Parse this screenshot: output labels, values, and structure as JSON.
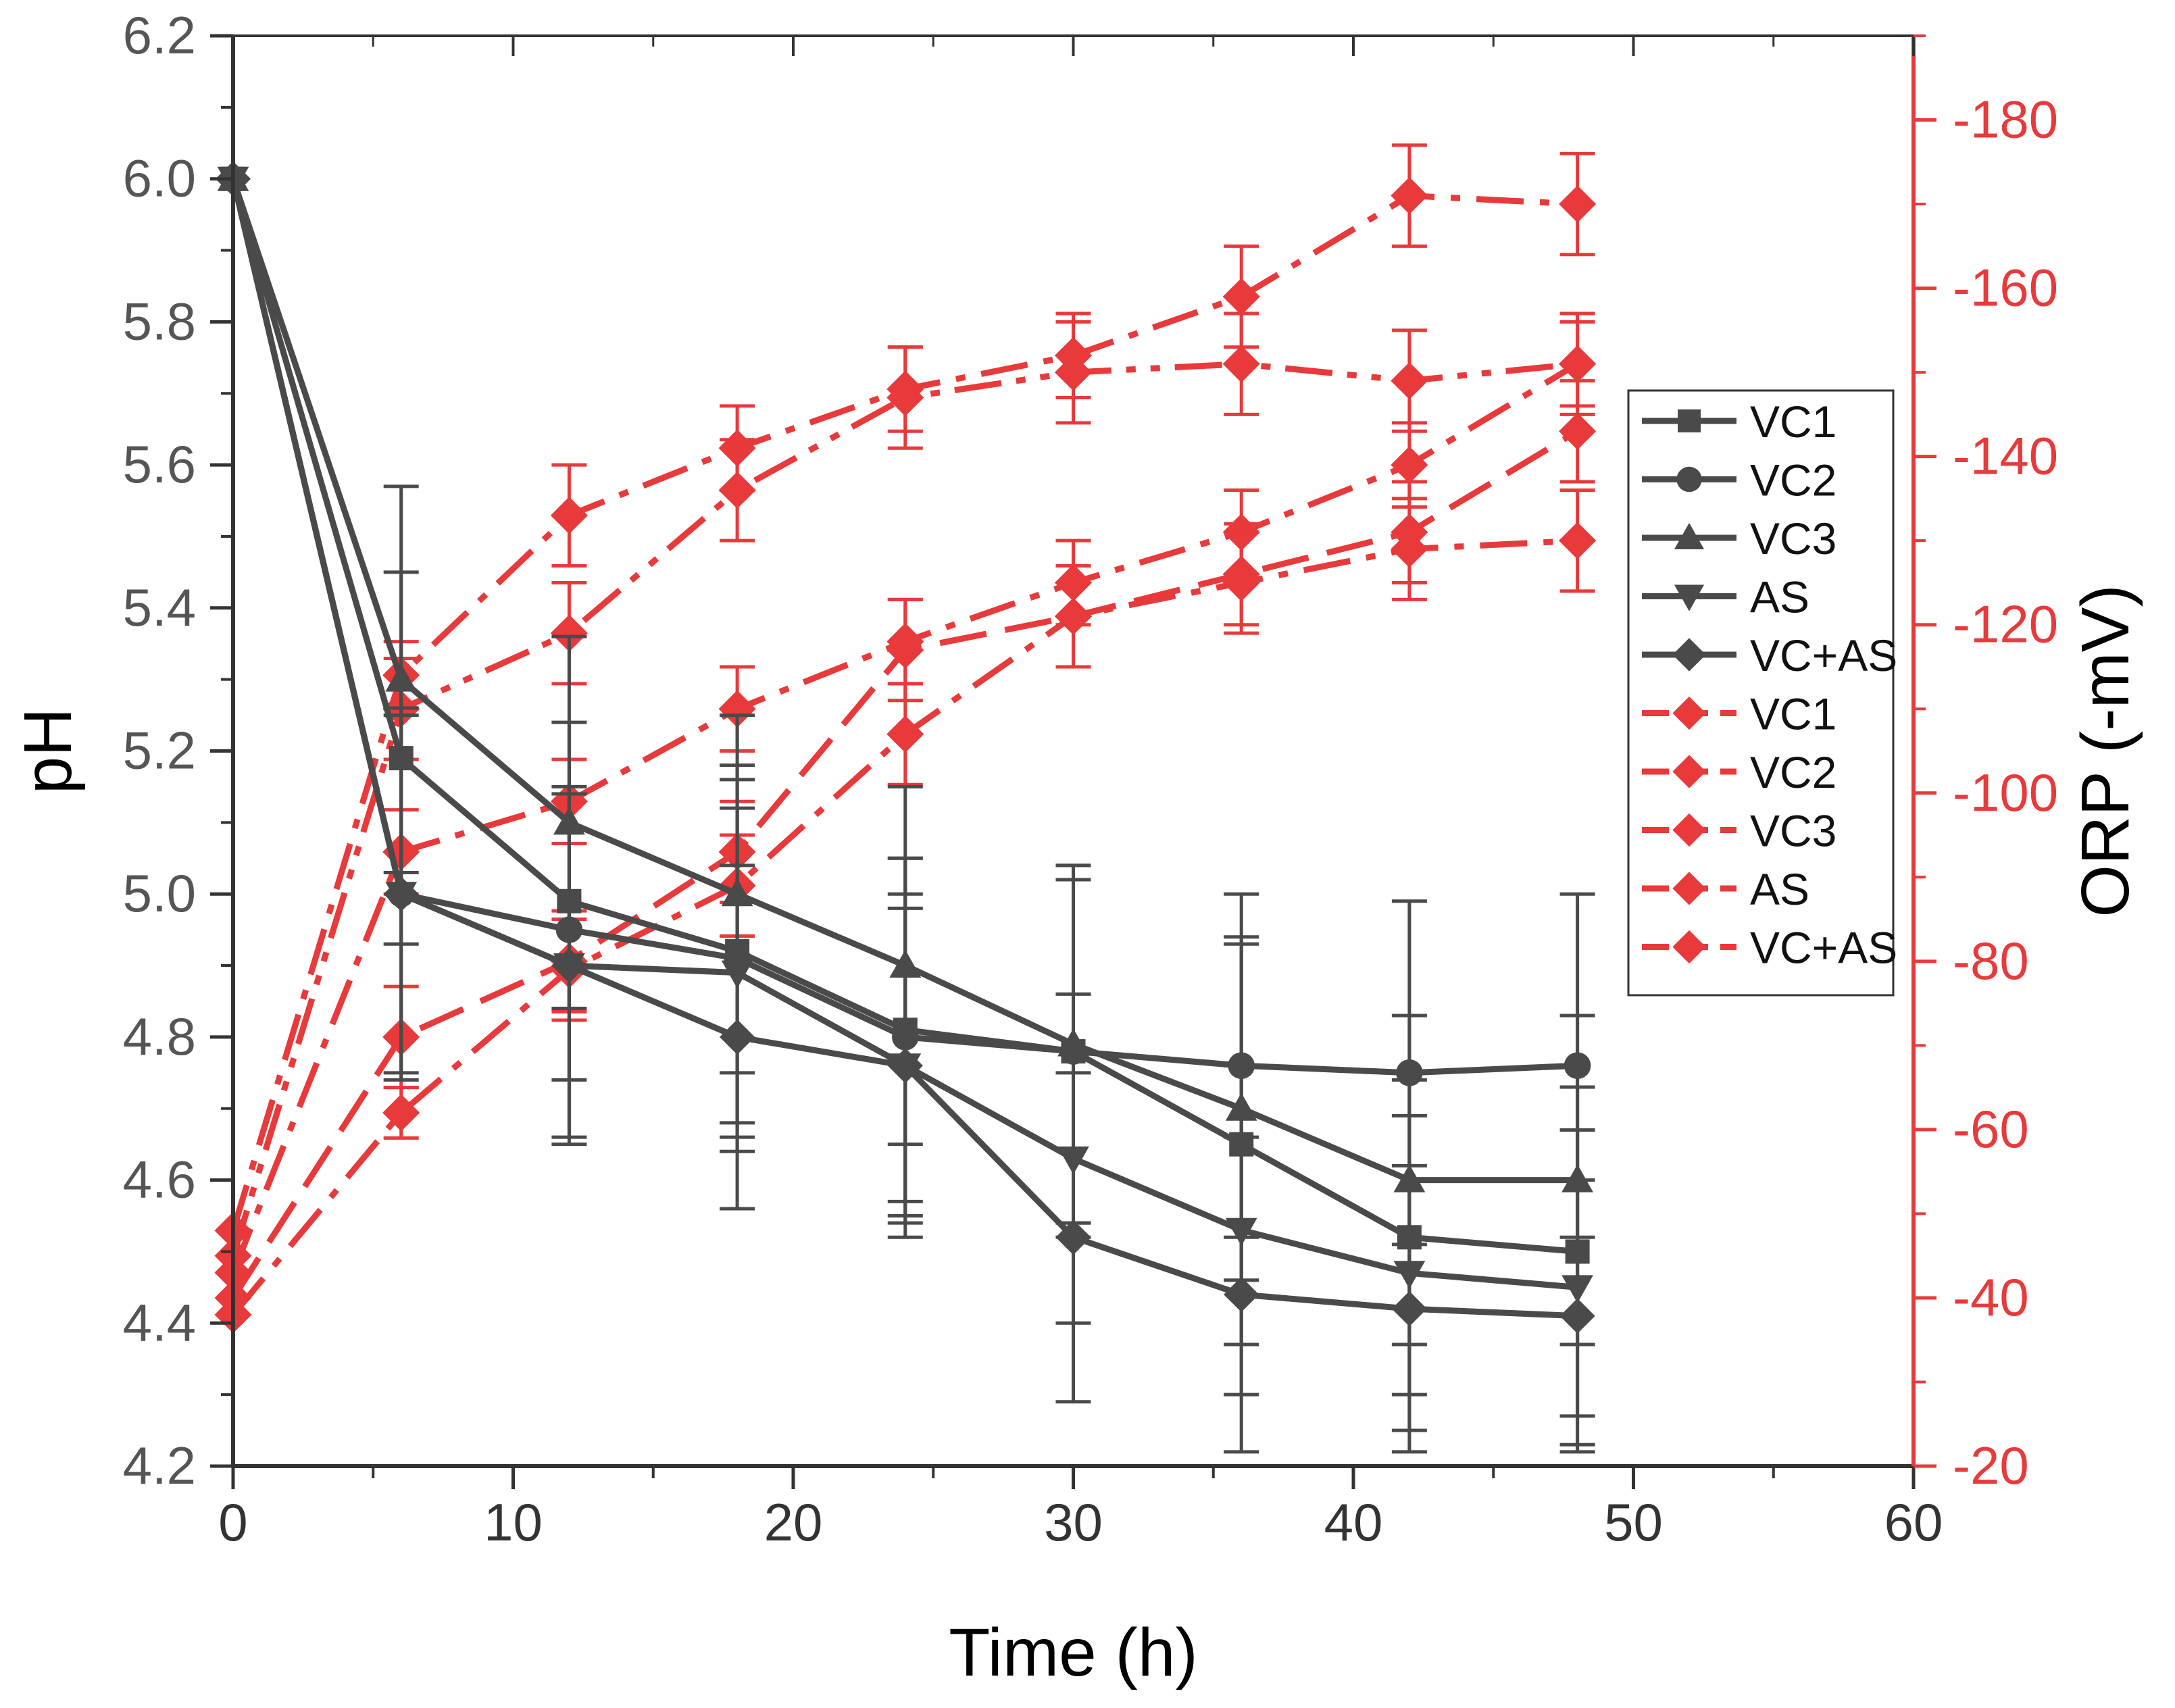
{
  "chart_data": {
    "type": "line",
    "title": "",
    "xlabel": "Time (h)",
    "ylabel_left": "pH",
    "ylabel_right": "ORP (-mV)",
    "xlim": [
      0,
      60
    ],
    "ylim_left": [
      4.2,
      6.2
    ],
    "ylim_right": [
      -20,
      -190
    ],
    "x_ticks": [
      0,
      10,
      20,
      30,
      40,
      50,
      60
    ],
    "y_left_ticks": [
      4.2,
      4.4,
      4.6,
      4.8,
      5.0,
      5.2,
      5.4,
      5.6,
      5.8,
      6.0,
      6.2
    ],
    "y_right_ticks": [
      -20,
      -40,
      -60,
      -80,
      -100,
      -120,
      -140,
      -160,
      -180
    ],
    "x_tick_labels": [
      "0",
      "10",
      "20",
      "30",
      "40",
      "50",
      "60"
    ],
    "y_left_tick_labels": [
      "4.2",
      "4.4",
      "4.6",
      "4.8",
      "5.0",
      "5.2",
      "5.4",
      "5.6",
      "5.8",
      "6.0",
      "6.2"
    ],
    "y_right_tick_labels": [
      "-20",
      "-40",
      "-60",
      "-80",
      "-100",
      "-120",
      "-140",
      "-160",
      "-180"
    ],
    "colors": {
      "ph": "#4a4a4a",
      "orp": "#e8393b"
    },
    "legend_position": "center-right",
    "x": [
      0,
      6,
      12,
      18,
      24,
      30,
      36,
      42,
      48
    ],
    "ph_series": [
      {
        "name": "VC1",
        "marker": "square",
        "values": [
          6.0,
          5.19,
          4.99,
          4.92,
          4.81,
          4.78,
          4.65,
          4.52,
          4.5
        ],
        "errors": [
          0.0,
          0.26,
          0.25,
          0.24,
          0.24,
          0.24,
          0.28,
          0.22,
          0.23
        ]
      },
      {
        "name": "VC2",
        "marker": "circle",
        "values": [
          6.0,
          5.0,
          4.95,
          4.91,
          4.8,
          4.78,
          4.76,
          4.75,
          4.76
        ],
        "errors": [
          0.0,
          0.0,
          0.0,
          0.27,
          0.25,
          0.26,
          0.24,
          0.24,
          0.24
        ]
      },
      {
        "name": "VC3",
        "marker": "triangle-up",
        "values": [
          6.0,
          5.3,
          5.1,
          5.0,
          4.9,
          4.79,
          4.7,
          4.6,
          4.6
        ],
        "errors": [
          0.0,
          0.27,
          0.26,
          0.25,
          0.25,
          0.25,
          0.24,
          0.23,
          0.23
        ]
      },
      {
        "name": "AS",
        "marker": "triangle-down",
        "values": [
          6.0,
          5.0,
          4.9,
          4.89,
          4.76,
          4.63,
          4.53,
          4.47,
          4.45
        ],
        "errors": [
          0.0,
          0.25,
          0.24,
          0.23,
          0.22,
          0.23,
          0.23,
          0.22,
          0.22
        ]
      },
      {
        "name": "VC+AS",
        "marker": "diamond",
        "values": [
          6.0,
          5.0,
          4.9,
          4.8,
          4.76,
          4.52,
          4.44,
          4.42,
          4.41
        ],
        "errors": [
          0.0,
          0.26,
          0.25,
          0.24,
          0.24,
          0.23,
          0.22,
          0.2,
          0.19
        ]
      }
    ],
    "orp_series": [
      {
        "name": "VC1",
        "marker": "diamond",
        "dash": "dash-dot",
        "values": [
          -48,
          -114,
          -133,
          -141,
          -148,
          -152,
          -159,
          -171,
          -170
        ],
        "errors": [
          0,
          4,
          6,
          5,
          5,
          5,
          6,
          6,
          6
        ]
      },
      {
        "name": "VC2",
        "marker": "diamond",
        "dash": "dash-dot-dot",
        "values": [
          -45,
          -110,
          -119,
          -136,
          -147,
          -150,
          -151,
          -149,
          -151
        ],
        "errors": [
          0,
          6,
          6,
          6,
          6,
          6,
          6,
          6,
          6
        ]
      },
      {
        "name": "VC3",
        "marker": "diamond",
        "dash": "dash-dot",
        "values": [
          -43,
          -93,
          -99,
          -110,
          -118,
          -125,
          -131,
          -139,
          -151
        ],
        "errors": [
          0,
          5,
          5,
          5,
          5,
          5,
          5,
          5,
          5
        ]
      },
      {
        "name": "AS",
        "marker": "diamond",
        "dash": "dash",
        "values": [
          -40,
          -71,
          -80,
          -93,
          -117,
          -121,
          -126,
          -131,
          -143
        ],
        "errors": [
          0,
          6,
          6,
          6,
          6,
          6,
          6,
          6,
          6
        ]
      },
      {
        "name": "VC+AS",
        "marker": "diamond",
        "dash": "dash-dot",
        "values": [
          -38,
          -62,
          -79,
          -89,
          -107,
          -121,
          -125,
          -129,
          -130
        ],
        "errors": [
          0,
          3,
          6,
          6,
          6,
          6,
          6,
          6,
          6
        ]
      }
    ]
  }
}
